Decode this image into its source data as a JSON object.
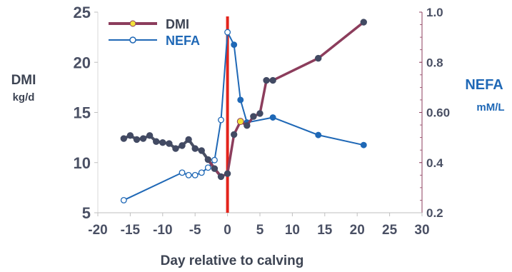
{
  "chart_data": {
    "type": "line",
    "xlabel": "Day relative to calving",
    "x_ticks": [
      "-20",
      "-15",
      "-10",
      "-5",
      "0",
      "5",
      "10",
      "15",
      "20",
      "25",
      "30"
    ],
    "xlim": [
      -20,
      30
    ],
    "y_left": {
      "label_line1": "DMI",
      "label_line2": "kg/d",
      "ticks": [
        "5",
        "10",
        "15",
        "20",
        "25"
      ],
      "ylim": [
        5,
        25
      ]
    },
    "y_right": {
      "label_line1": "NEFA",
      "label_line2": "mM/L",
      "ticks": [
        "0.2",
        "0.4",
        "0.60",
        "0.8",
        "1.0"
      ],
      "ylim": [
        0.2,
        1.0
      ]
    },
    "calving_line_x": 0,
    "legend": {
      "placement": "top-left"
    },
    "series": [
      {
        "name": "DMI",
        "axis": "left",
        "prepartum_color": "#4a5064",
        "postpartum_color": "#8c3d5c",
        "marker_color": "#424a63",
        "highlight_color": "#f2e23a",
        "x": [
          -16,
          -15,
          -14,
          -13,
          -12,
          -11,
          -10,
          -9,
          -8,
          -7,
          -6,
          -5,
          -4,
          -3,
          -2,
          -1,
          0,
          1,
          2,
          3,
          4,
          5,
          6,
          7,
          14,
          21
        ],
        "values": [
          12.4,
          12.7,
          12.3,
          12.4,
          12.7,
          12.1,
          12.0,
          11.9,
          11.4,
          11.7,
          12.3,
          11.4,
          11.2,
          10.3,
          9.4,
          8.6,
          8.9,
          12.8,
          14.1,
          13.7,
          14.6,
          14.9,
          18.2,
          18.2,
          20.4,
          24.0
        ]
      },
      {
        "name": "NEFA",
        "axis": "right",
        "color": "#1f68b6",
        "x": [
          -16,
          -7,
          -6,
          -5,
          -4,
          -3,
          -2,
          -1,
          0,
          1,
          2,
          3,
          7,
          14,
          21
        ],
        "values": [
          0.25,
          0.36,
          0.35,
          0.35,
          0.36,
          0.38,
          0.41,
          0.57,
          0.92,
          0.87,
          0.65,
          0.56,
          0.58,
          0.51,
          0.47
        ]
      }
    ]
  }
}
